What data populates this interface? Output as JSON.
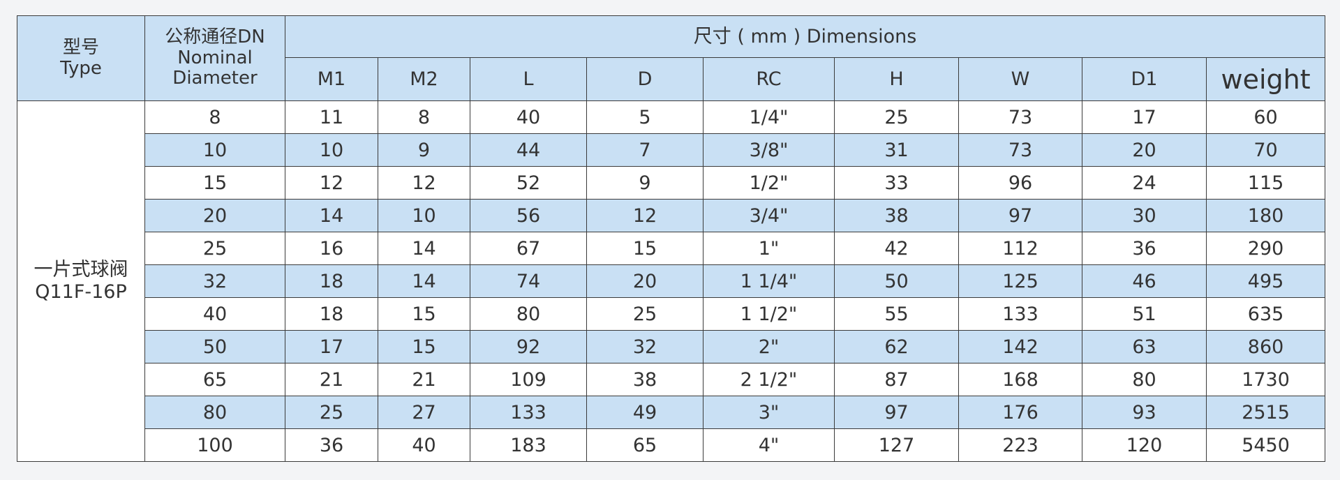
{
  "table": {
    "header": {
      "type": [
        "型号",
        "Type"
      ],
      "dn": [
        "公称通径DN",
        "Nominal",
        "Diameter"
      ],
      "dimensions": "尺寸 ( mm ) Dimensions",
      "columns": [
        "M1",
        "M2",
        "L",
        "D",
        "RC",
        "H",
        "W",
        "D1",
        "weight"
      ]
    },
    "type_cell": [
      "一片式球阀",
      "Q11F-16P"
    ],
    "rows": [
      [
        "8",
        "11",
        "8",
        "40",
        "5",
        "1/4\"",
        "25",
        "73",
        "17",
        "60"
      ],
      [
        "10",
        "10",
        "9",
        "44",
        "7",
        "3/8\"",
        "31",
        "73",
        "20",
        "70"
      ],
      [
        "15",
        "12",
        "12",
        "52",
        "9",
        "1/2\"",
        "33",
        "96",
        "24",
        "115"
      ],
      [
        "20",
        "14",
        "10",
        "56",
        "12",
        "3/4\"",
        "38",
        "97",
        "30",
        "180"
      ],
      [
        "25",
        "16",
        "14",
        "67",
        "15",
        "1\"",
        "42",
        "112",
        "36",
        "290"
      ],
      [
        "32",
        "18",
        "14",
        "74",
        "20",
        "1 1/4\"",
        "50",
        "125",
        "46",
        "495"
      ],
      [
        "40",
        "18",
        "15",
        "80",
        "25",
        "1 1/2\"",
        "55",
        "133",
        "51",
        "635"
      ],
      [
        "50",
        "17",
        "15",
        "92",
        "32",
        "2\"",
        "62",
        "142",
        "63",
        "860"
      ],
      [
        "65",
        "21",
        "21",
        "109",
        "38",
        "2 1/2\"",
        "87",
        "168",
        "80",
        "1730"
      ],
      [
        "80",
        "25",
        "27",
        "133",
        "49",
        "3\"",
        "97",
        "176",
        "93",
        "2515"
      ],
      [
        "100",
        "36",
        "40",
        "183",
        "65",
        "4\"",
        "127",
        "223",
        "120",
        "5450"
      ]
    ]
  }
}
